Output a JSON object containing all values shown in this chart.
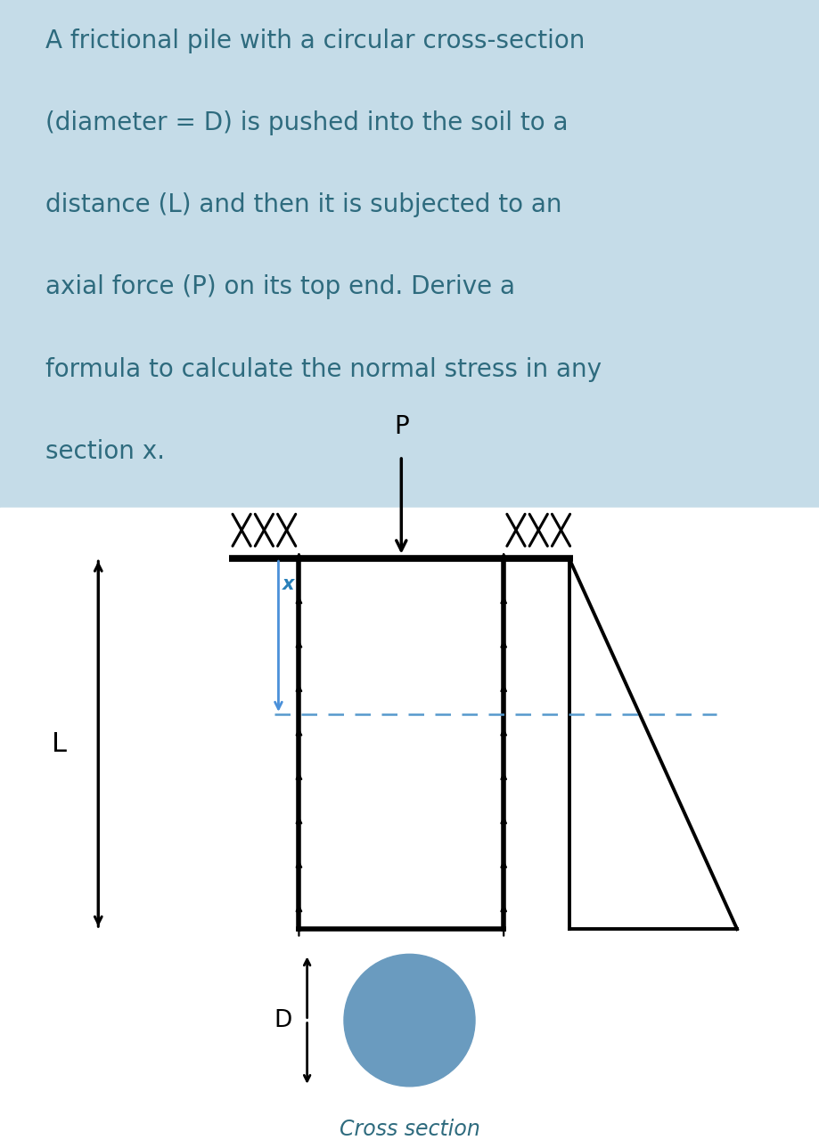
{
  "bg_top_color": "#c5dce8",
  "bg_bottom_color": "#ffffff",
  "text_color": "#2e6b7e",
  "text_lines": [
    "A frictional pile with a circular cross-section",
    "(diameter = D) is pushed into the soil to a",
    "distance (L) and then it is subjected to an",
    "axial force (P) on its top end. Derive a",
    "formula to calculate the normal stress in any",
    "section x."
  ],
  "title_fontsize": 20,
  "circle_color": "#6a9bbf",
  "blue_arrow_color": "#4a90d9",
  "dashed_color": "#5599cc",
  "x_label_color": "#2980b9",
  "black": "#000000",
  "white": "#ffffff"
}
